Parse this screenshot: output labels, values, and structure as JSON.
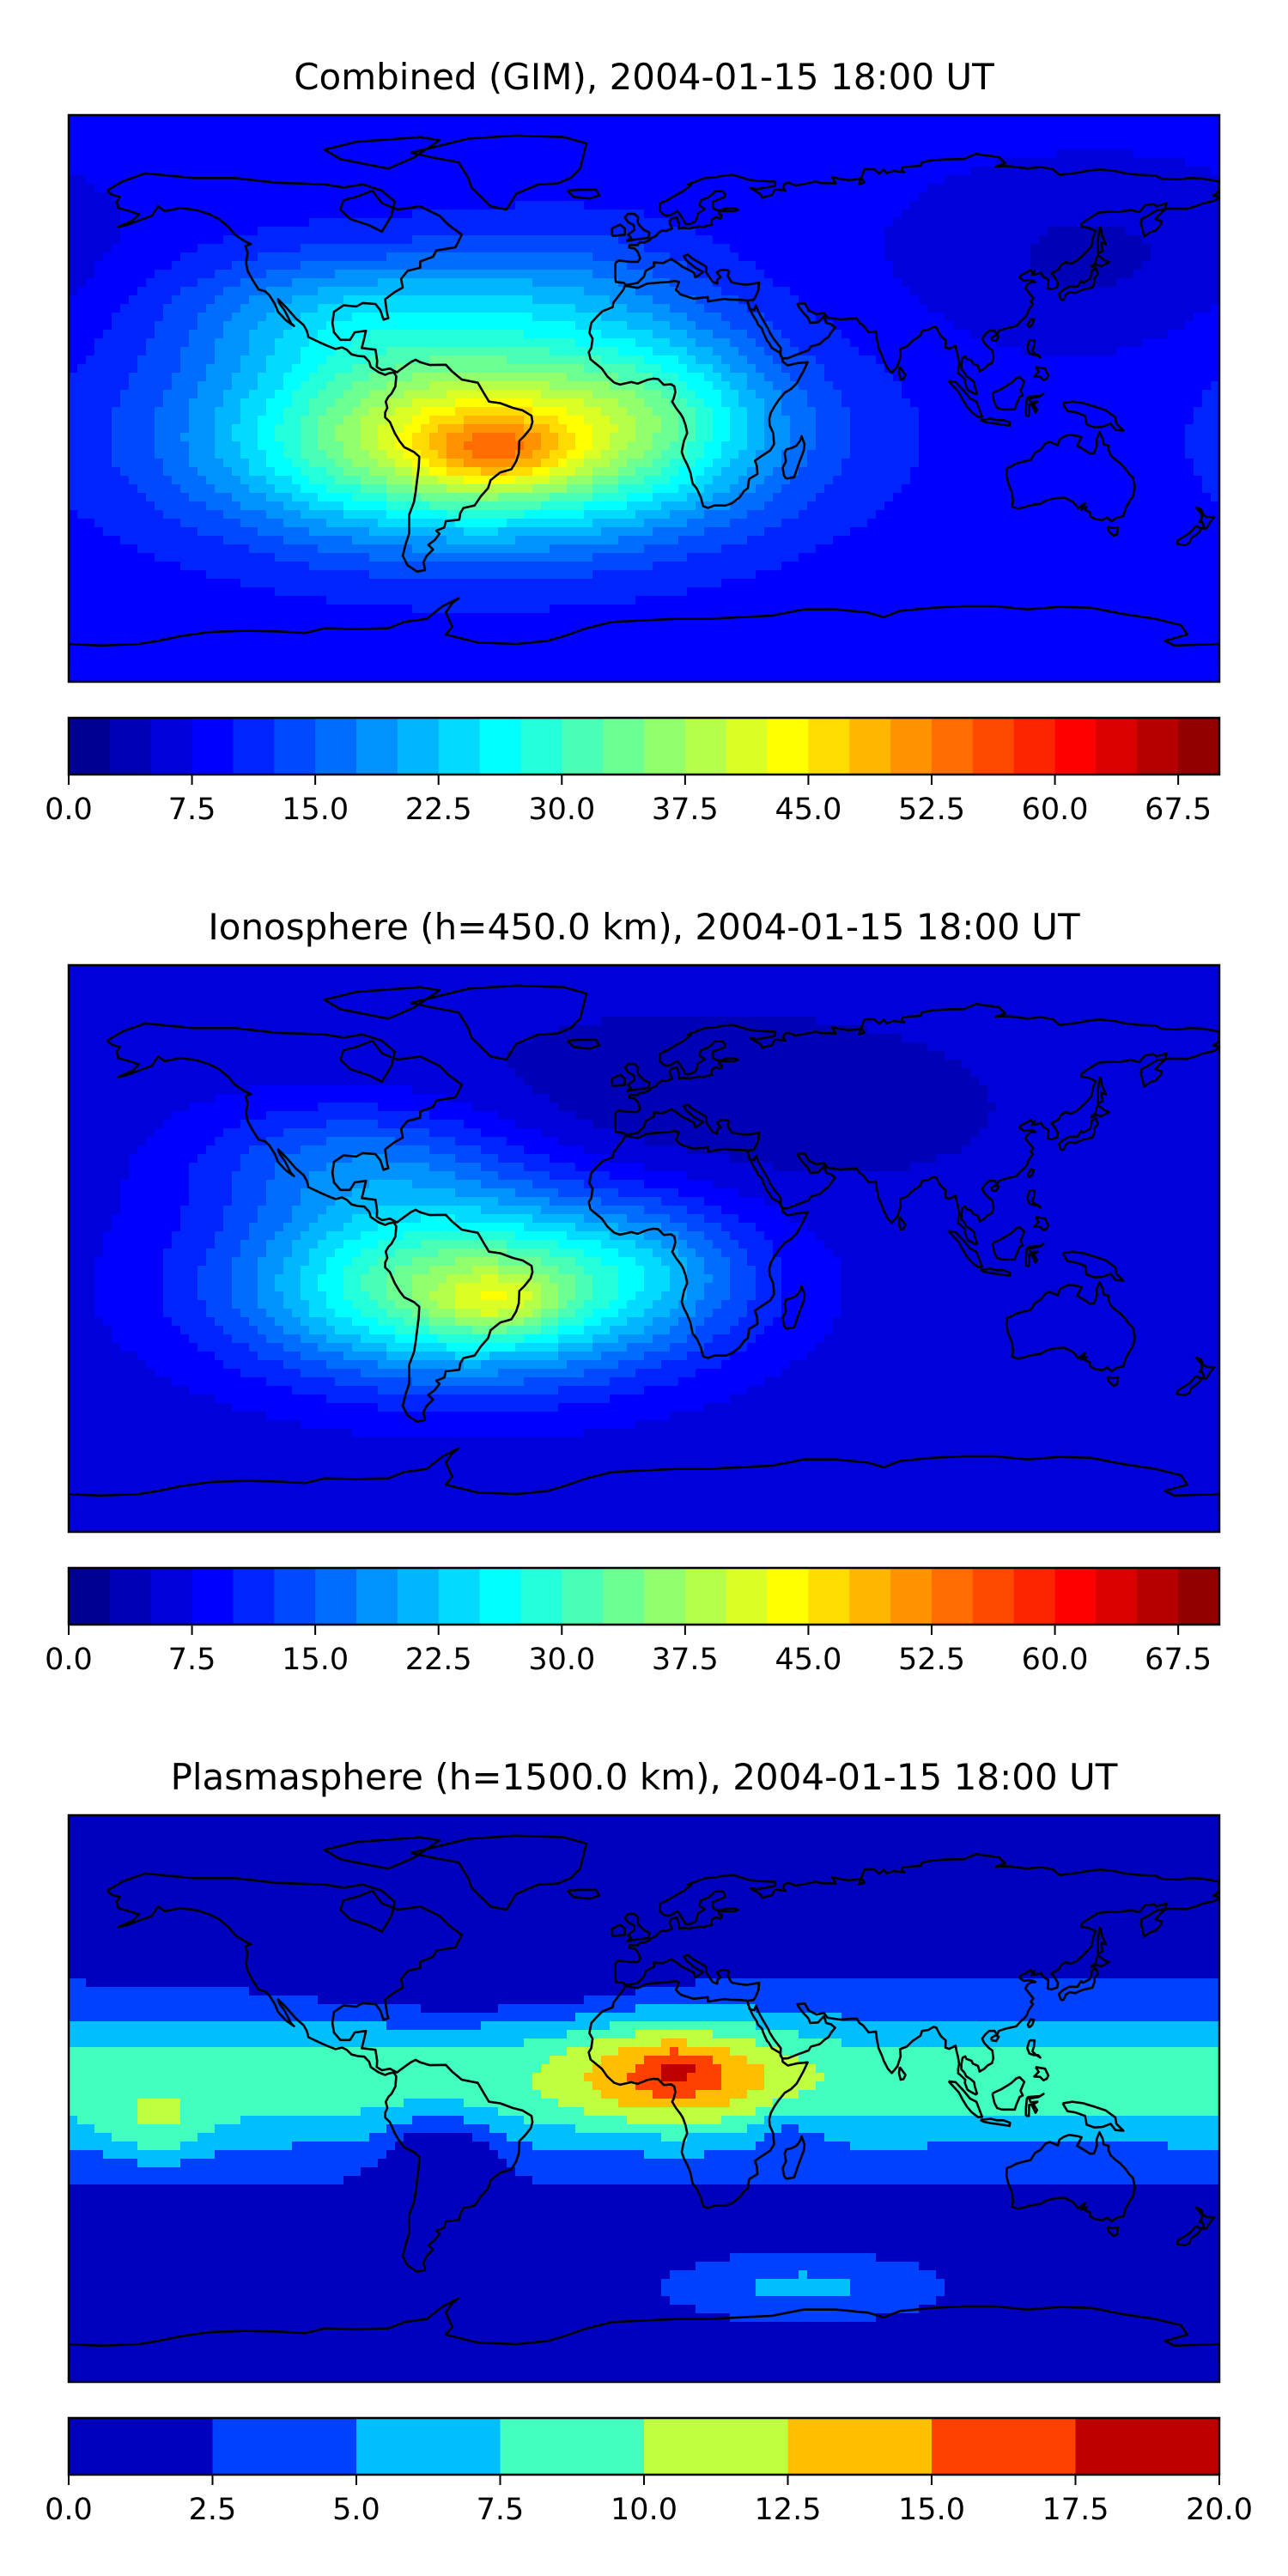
{
  "panels": [
    {
      "title": "Combined (GIM), 2004-01-15 18:00 UT",
      "colorbar": {
        "min": 0,
        "max": 70,
        "step": 2.5,
        "tick_labels": [
          "0.0",
          "7.5",
          "15.0",
          "22.5",
          "30.0",
          "37.5",
          "45.0",
          "52.5",
          "60.0",
          "67.5"
        ],
        "tick_values": [
          0,
          7.5,
          15,
          22.5,
          30,
          37.5,
          45,
          52.5,
          60,
          67.5
        ]
      },
      "field": {
        "background": 8.5,
        "blobs": [
          {
            "lon": -52,
            "lat": -12,
            "amp": 36,
            "slon": 55,
            "slat": 22
          },
          {
            "lon": -47,
            "lat": -17,
            "amp": 10,
            "slon": 16,
            "slat": 8
          },
          {
            "lon": -92,
            "lat": 28,
            "amp": 10,
            "slon": 38,
            "slat": 14
          },
          {
            "lon": -25,
            "lat": 35,
            "amp": 6,
            "slon": 30,
            "slat": 15
          },
          {
            "lon": 5,
            "lat": 0,
            "amp": 6,
            "slon": 25,
            "slat": 20
          },
          {
            "lon": 140,
            "lat": 45,
            "amp": -4,
            "slon": 40,
            "slat": 20
          }
        ]
      }
    },
    {
      "title": "Ionosphere  (h=450.0 km), 2004-01-15 18:00 UT",
      "colorbar": {
        "min": 0,
        "max": 70,
        "step": 2.5,
        "tick_labels": [
          "0.0",
          "7.5",
          "15.0",
          "22.5",
          "30.0",
          "37.5",
          "45.0",
          "52.5",
          "60.0",
          "67.5"
        ],
        "tick_values": [
          0,
          7.5,
          15,
          22.5,
          30,
          37.5,
          45,
          52.5,
          60,
          67.5
        ]
      },
      "field": {
        "background": 6,
        "blobs": [
          {
            "lon": -55,
            "lat": -12,
            "amp": 30,
            "slon": 48,
            "slat": 20
          },
          {
            "lon": -45,
            "lat": -17,
            "amp": 8,
            "slon": 14,
            "slat": 7
          },
          {
            "lon": -90,
            "lat": 28,
            "amp": 9,
            "slon": 35,
            "slat": 14
          },
          {
            "lon": 20,
            "lat": 45,
            "amp": -3,
            "slon": 60,
            "slat": 20
          },
          {
            "lon": 5,
            "lat": -5,
            "amp": 4,
            "slon": 20,
            "slat": 15
          }
        ]
      }
    },
    {
      "title": "Plasmasphere (h=1500.0 km), 2004-01-15 18:00 UT",
      "colorbar": {
        "min": 0,
        "max": 20,
        "step": 2.5,
        "tick_labels": [
          "0.0",
          "2.5",
          "5.0",
          "7.5",
          "10.0",
          "12.5",
          "15.0",
          "17.5",
          "20.0"
        ],
        "tick_values": [
          0,
          2.5,
          5,
          7.5,
          10,
          12.5,
          15,
          17.5,
          20
        ]
      },
      "field": {
        "background": 1.2,
        "band": {
          "lat": 5,
          "amp": 7.6,
          "slat": 24
        },
        "blobs": [
          {
            "lon": 10,
            "lat": 8,
            "amp": 7.5,
            "slon": 24,
            "slat": 12
          },
          {
            "lon": 10,
            "lat": 10,
            "amp": 2.5,
            "slon": 6,
            "slat": 4
          },
          {
            "lon": -152,
            "lat": -10,
            "amp": 3.5,
            "slon": 12,
            "slat": 8
          },
          {
            "lon": -64,
            "lat": -17,
            "amp": -5.5,
            "slon": 12,
            "slat": 9
          },
          {
            "lon": -55,
            "lat": 38,
            "amp": -3.5,
            "slon": 35,
            "slat": 8
          },
          {
            "lon": 45,
            "lat": -10,
            "amp": -2.5,
            "slon": 8,
            "slat": 6
          },
          {
            "lon": 50,
            "lat": -60,
            "amp": 4.5,
            "slon": 28,
            "slat": 7
          }
        ]
      }
    }
  ]
}
